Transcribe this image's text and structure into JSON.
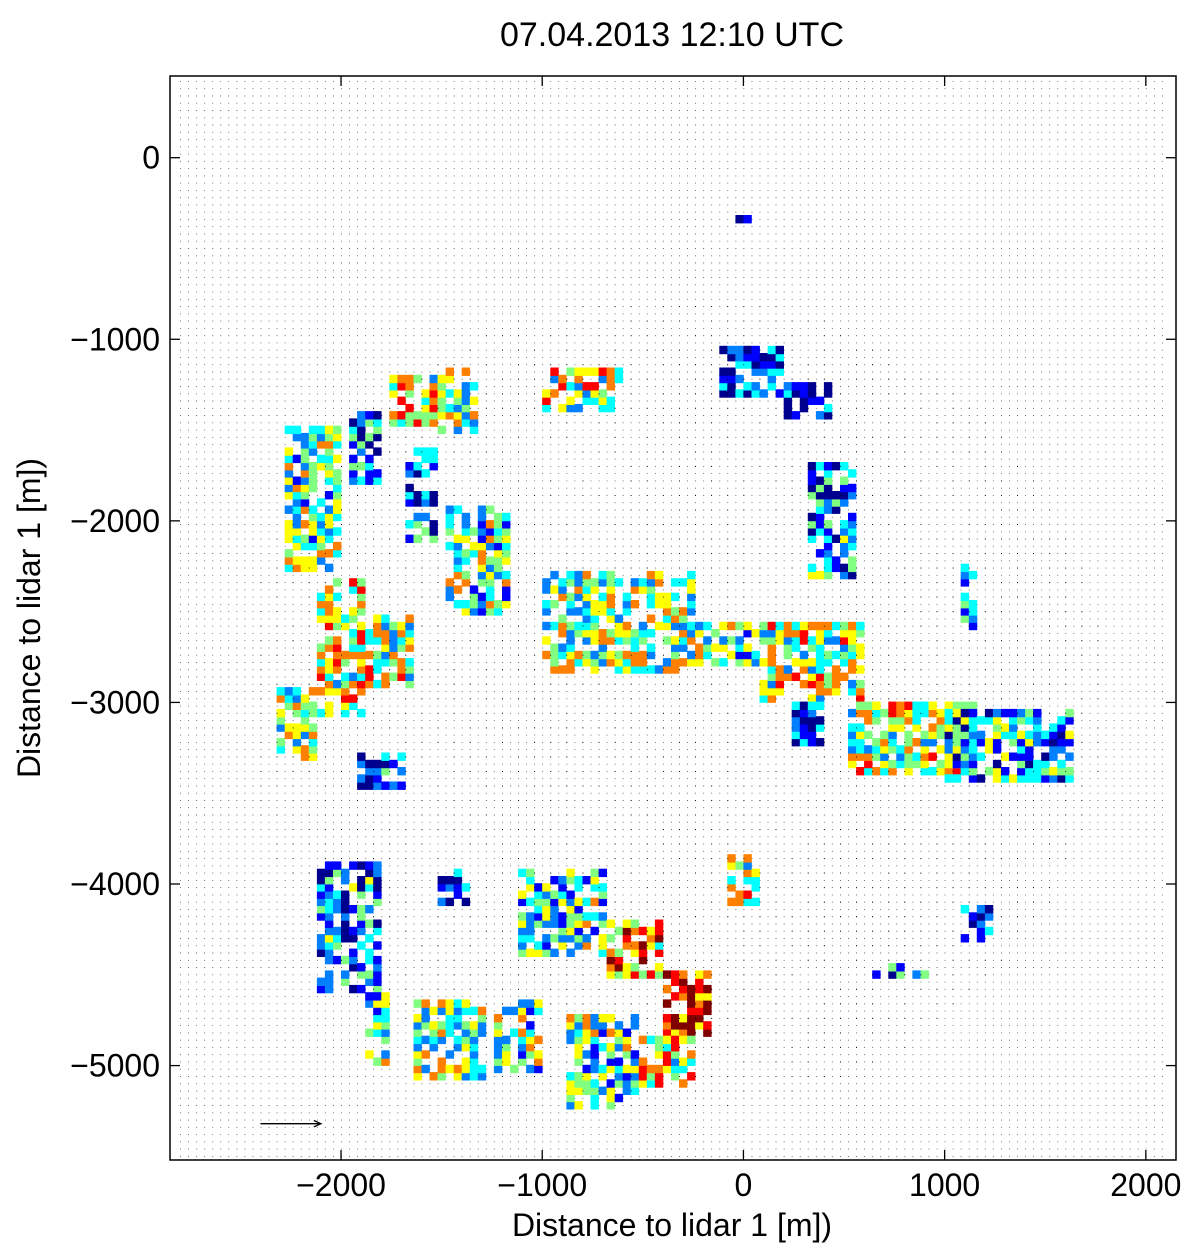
{
  "chart_data": {
    "type": "quiver",
    "title": "07.04.2013 12:10 UTC",
    "xlabel": "Distance to lidar 1 [m])",
    "ylabel": "Distance to lidar 1 [m])",
    "xlim": [
      -2850,
      2150
    ],
    "ylim": [
      -5520,
      450
    ],
    "xticks": [
      -2000,
      -1000,
      0,
      1000,
      2000
    ],
    "yticks": [
      0,
      -1000,
      -2000,
      -3000,
      -4000,
      -5000
    ],
    "xtick_labels": [
      "−2000",
      "−1000",
      "0",
      "1000",
      "2000"
    ],
    "ytick_labels": [
      "0",
      "−1000",
      "−2000",
      "−3000",
      "−4000",
      "−5000"
    ],
    "grid": "dot-grid",
    "colormap": [
      "#00008f",
      "#0000ff",
      "#0080ff",
      "#00ffff",
      "#80ff80",
      "#ffff00",
      "#ff8000",
      "#ff0000",
      "#800000"
    ],
    "reference_vector": {
      "x": -2400,
      "y": -5320,
      "u": 300,
      "v": 0
    },
    "cell_regions": [
      {
        "x": [
          -2300,
          -2000
        ],
        "y": [
          -2300,
          -1480
        ],
        "level": 0.45
      },
      {
        "x": [
          -2130,
          -1880
        ],
        "y": [
          -3100,
          -2350
        ],
        "level": 0.6
      },
      {
        "x": [
          -1900,
          -1660
        ],
        "y": [
          -2950,
          -2550
        ],
        "level": 0.55
      },
      {
        "x": [
          -2330,
          -2130
        ],
        "y": [
          -3350,
          -2950
        ],
        "level": 0.45
      },
      {
        "x": [
          -1760,
          -1500
        ],
        "y": [
          -1480,
          -1230
        ],
        "level": 0.6
      },
      {
        "x": [
          -1680,
          -1540
        ],
        "y": [
          -2120,
          -1620
        ],
        "level": 0.25
      },
      {
        "x": [
          -1500,
          -1160
        ],
        "y": [
          -2550,
          -1950
        ],
        "level": 0.45
      },
      {
        "x": [
          -1550,
          -1340
        ],
        "y": [
          -1520,
          -1160
        ],
        "level": 0.5
      },
      {
        "x": [
          -1980,
          -1800
        ],
        "y": [
          -1820,
          -1400
        ],
        "level": 0.25
      },
      {
        "x": [
          -1020,
          -620
        ],
        "y": [
          -1400,
          -1160
        ],
        "level": 0.55
      },
      {
        "x": [
          -1000,
          -250
        ],
        "y": [
          -2850,
          -2300
        ],
        "level": 0.5
      },
      {
        "x": [
          -250,
          80
        ],
        "y": [
          -2820,
          -2560
        ],
        "level": 0.45
      },
      {
        "x": [
          -150,
          200
        ],
        "y": [
          -1340,
          -1050
        ],
        "level": 0.15
      },
      {
        "x": [
          200,
          440
        ],
        "y": [
          -1460,
          -1240
        ],
        "level": 0.15
      },
      {
        "x": [
          300,
          540
        ],
        "y": [
          -2320,
          -1700
        ],
        "level": 0.3
      },
      {
        "x": [
          60,
          600
        ],
        "y": [
          -3000,
          -2560
        ],
        "level": 0.55
      },
      {
        "x": [
          500,
          1150
        ],
        "y": [
          -3400,
          -3000
        ],
        "level": 0.55
      },
      {
        "x": [
          1000,
          1620
        ],
        "y": [
          -3450,
          -3050
        ],
        "level": 0.35
      },
      {
        "x": [
          220,
          380
        ],
        "y": [
          -3250,
          -3000
        ],
        "level": 0.2
      },
      {
        "x": [
          -2130,
          -1800
        ],
        "y": [
          -4620,
          -3900
        ],
        "level": 0.3
      },
      {
        "x": [
          -1900,
          -1780
        ],
        "y": [
          -5000,
          -4600
        ],
        "level": 0.45
      },
      {
        "x": [
          -1550,
          -1380
        ],
        "y": [
          -4120,
          -3930
        ],
        "level": 0.15
      },
      {
        "x": [
          -1150,
          -700
        ],
        "y": [
          -4400,
          -3950
        ],
        "level": 0.4
      },
      {
        "x": [
          -700,
          -400
        ],
        "y": [
          -4550,
          -4200
        ],
        "level": 0.7
      },
      {
        "x": [
          -400,
          -180
        ],
        "y": [
          -4850,
          -4500
        ],
        "level": 0.85
      },
      {
        "x": [
          -1650,
          -1300
        ],
        "y": [
          -5100,
          -4650
        ],
        "level": 0.5
      },
      {
        "x": [
          -1250,
          -1000
        ],
        "y": [
          -5050,
          -4650
        ],
        "level": 0.45
      },
      {
        "x": [
          -900,
          -550
        ],
        "y": [
          -5250,
          -4750
        ],
        "level": 0.45
      },
      {
        "x": [
          -550,
          -250
        ],
        "y": [
          -5150,
          -4850
        ],
        "level": 0.6
      },
      {
        "x": [
          -1950,
          -1700
        ],
        "y": [
          -3500,
          -3300
        ],
        "level": 0.2
      },
      {
        "x": [
          1050,
          1230
        ],
        "y": [
          -4320,
          -4150
        ],
        "level": 0.2
      },
      {
        "x": [
          600,
          900
        ],
        "y": [
          -4550,
          -4450
        ],
        "level": 0.3
      },
      {
        "x": [
          -60,
          30
        ],
        "y": [
          -370,
          -320
        ],
        "level": 0.2
      },
      {
        "x": [
          -100,
          80
        ],
        "y": [
          -4150,
          -3850
        ],
        "level": 0.55
      },
      {
        "x": [
          1070,
          1160
        ],
        "y": [
          -2620,
          -2250
        ],
        "level": 0.4
      }
    ]
  }
}
